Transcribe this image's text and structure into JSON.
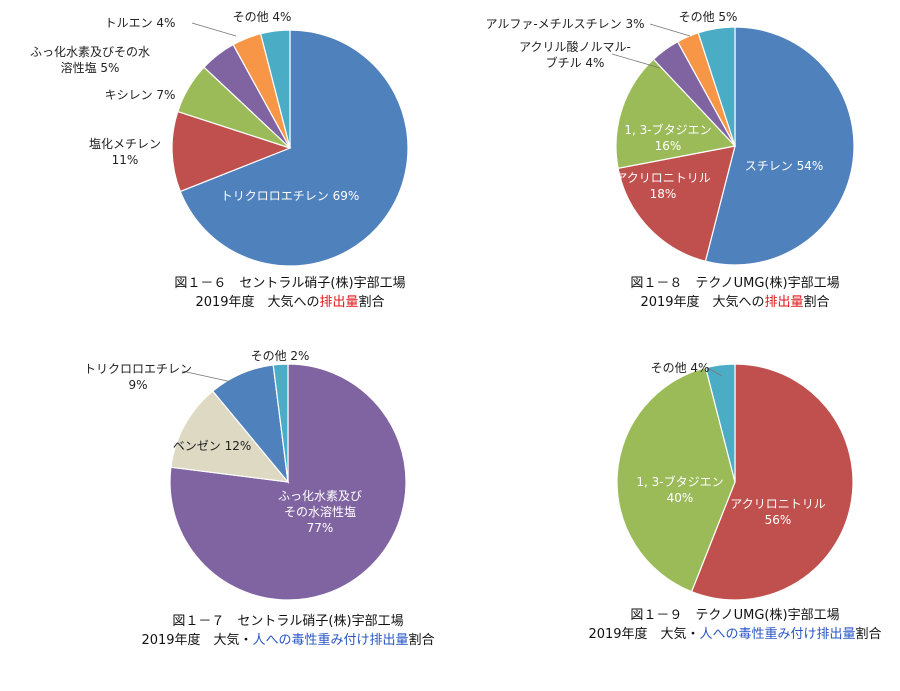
{
  "chart_data": [
    {
      "type": "pie",
      "slices": [
        {
          "label": "トリクロロエチレン",
          "value": 69,
          "color": "#4F81BD"
        },
        {
          "label": "塩化メチレン",
          "value": 11,
          "color": "#C0504D"
        },
        {
          "label": "キシレン",
          "value": 7,
          "color": "#9BBB59"
        },
        {
          "label": "ふっ化水素及びその水溶性塩",
          "value": 5,
          "color": "#8064A2"
        },
        {
          "label": "トルエン",
          "value": 4,
          "color": "#F79646"
        },
        {
          "label": "その他",
          "value": 4,
          "color": "#4BACC6"
        }
      ],
      "display_labels": [
        {
          "lines": [
            "トリクロロエチレン 69%"
          ],
          "color": "#ffffff"
        },
        {
          "lines": [
            "塩化メチレン",
            "11%"
          ],
          "color": "#222222"
        },
        {
          "lines": [
            "キシレン 7%"
          ],
          "color": "#222222"
        },
        {
          "lines": [
            "ふっ化水素及びその水",
            "溶性塩 5%"
          ],
          "color": "#222222"
        },
        {
          "lines": [
            "トルエン 4%"
          ],
          "color": "#222222"
        },
        {
          "lines": [
            "その他 4%"
          ],
          "color": "#222222"
        }
      ],
      "caption": [
        [
          {
            "t": "図１－６　セントラル硝子(株)宇部工場",
            "c": "#111111"
          }
        ],
        [
          {
            "t": "2019年度　大気への",
            "c": "#111111"
          },
          {
            "t": "排出量",
            "c": "#e3161b"
          },
          {
            "t": "割合",
            "c": "#111111"
          }
        ]
      ]
    },
    {
      "type": "pie",
      "slices": [
        {
          "label": "スチレン",
          "value": 54,
          "color": "#4F81BD"
        },
        {
          "label": "アクリロニトリル",
          "value": 18,
          "color": "#C0504D"
        },
        {
          "label": "1, 3-ブタジエン",
          "value": 16,
          "color": "#9BBB59"
        },
        {
          "label": "アクリル酸ノルマル-ブチル",
          "value": 4,
          "color": "#8064A2"
        },
        {
          "label": "アルファ-メチルスチレン",
          "value": 3,
          "color": "#F79646"
        },
        {
          "label": "その他",
          "value": 5,
          "color": "#4BACC6"
        }
      ],
      "display_labels": [
        {
          "lines": [
            "スチレン 54%"
          ],
          "color": "#ffffff"
        },
        {
          "lines": [
            "アクリロニトリル",
            "18%"
          ],
          "color": "#ffffff"
        },
        {
          "lines": [
            "1, 3-ブタジエン",
            "16%"
          ],
          "color": "#ffffff"
        },
        {
          "lines": [
            "アクリル酸ノルマル-",
            "ブチル 4%"
          ],
          "color": "#222222"
        },
        {
          "lines": [
            "アルファ-メチルスチレン 3%"
          ],
          "color": "#222222"
        },
        {
          "lines": [
            "その他 5%"
          ],
          "color": "#222222"
        }
      ],
      "caption": [
        [
          {
            "t": "図１－８　テクノUMG(株)宇部工場",
            "c": "#111111"
          }
        ],
        [
          {
            "t": "2019年度　大気への",
            "c": "#111111"
          },
          {
            "t": "排出量",
            "c": "#e3161b"
          },
          {
            "t": "割合",
            "c": "#111111"
          }
        ]
      ]
    },
    {
      "type": "pie",
      "slices": [
        {
          "label": "ふっ化水素及びその水溶性塩",
          "value": 77,
          "color": "#8064A2"
        },
        {
          "label": "ベンゼン",
          "value": 12,
          "color": "#DDD9C3"
        },
        {
          "label": "トリクロロエチレン",
          "value": 9,
          "color": "#4F81BD"
        },
        {
          "label": "その他",
          "value": 2,
          "color": "#4BACC6"
        }
      ],
      "display_labels": [
        {
          "lines": [
            "ふっ化水素及び",
            "その水溶性塩",
            "77%"
          ],
          "color": "#ffffff"
        },
        {
          "lines": [
            "ベンゼン 12%"
          ],
          "color": "#222222"
        },
        {
          "lines": [
            "トリクロロエチレン",
            "9%"
          ],
          "color": "#222222"
        },
        {
          "lines": [
            "その他 2%"
          ],
          "color": "#222222"
        }
      ],
      "caption": [
        [
          {
            "t": "図１－７　セントラル硝子(株)宇部工場",
            "c": "#111111"
          }
        ],
        [
          {
            "t": "2019年度　大気・",
            "c": "#111111"
          },
          {
            "t": "人への毒性重み付け排出量",
            "c": "#2a56c6"
          },
          {
            "t": "割合",
            "c": "#111111"
          }
        ]
      ]
    },
    {
      "type": "pie",
      "slices": [
        {
          "label": "アクリロニトリル",
          "value": 56,
          "color": "#C0504D"
        },
        {
          "label": "1, 3-ブタジエン",
          "value": 40,
          "color": "#9BBB59"
        },
        {
          "label": "その他",
          "value": 4,
          "color": "#4BACC6"
        }
      ],
      "display_labels": [
        {
          "lines": [
            "アクリロニトリル",
            "56%"
          ],
          "color": "#ffffff"
        },
        {
          "lines": [
            "1, 3-ブタジエン",
            "40%"
          ],
          "color": "#ffffff"
        },
        {
          "lines": [
            "その他 4%"
          ],
          "color": "#222222"
        }
      ],
      "caption": [
        [
          {
            "t": "図１－９　テクノUMG(株)宇部工場",
            "c": "#111111"
          }
        ],
        [
          {
            "t": "2019年度　大気・",
            "c": "#111111"
          },
          {
            "t": "人への毒性重み付け排出量",
            "c": "#2a56c6"
          },
          {
            "t": "割合",
            "c": "#111111"
          }
        ]
      ]
    }
  ]
}
